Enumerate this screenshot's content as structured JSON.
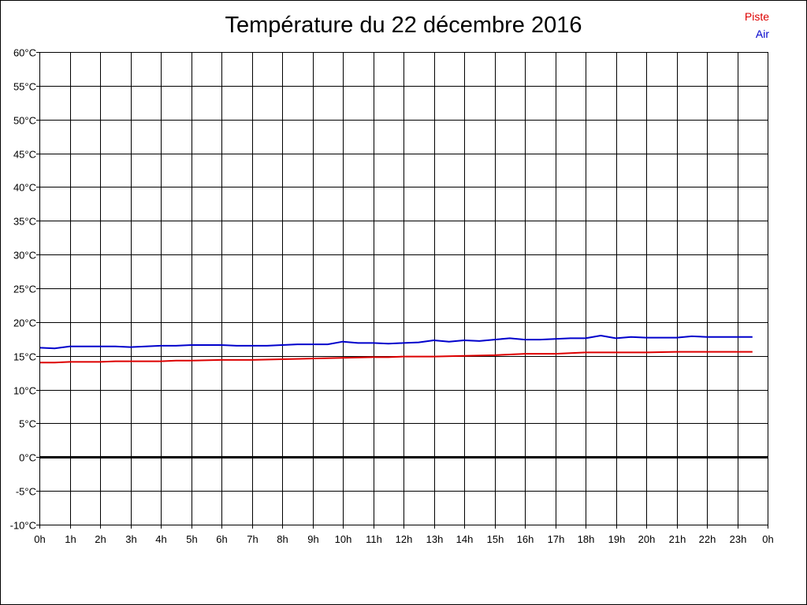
{
  "chart_data": {
    "type": "line",
    "title": "Température du 22 décembre 2016",
    "xlabel": "",
    "ylabel": "",
    "x_tick_labels": [
      "0h",
      "1h",
      "2h",
      "3h",
      "4h",
      "5h",
      "6h",
      "7h",
      "8h",
      "9h",
      "10h",
      "11h",
      "12h",
      "13h",
      "14h",
      "15h",
      "16h",
      "17h",
      "18h",
      "19h",
      "20h",
      "21h",
      "22h",
      "23h",
      "0h"
    ],
    "y_tick_labels": [
      "60°C",
      "55°C",
      "50°C",
      "45°C",
      "40°C",
      "35°C",
      "30°C",
      "25°C",
      "20°C",
      "15°C",
      "10°C",
      "5°C",
      "0°C",
      "-5°C",
      "-10°C"
    ],
    "xlim": [
      0,
      24
    ],
    "ylim": [
      -10,
      60
    ],
    "grid": true,
    "legend_placement": "top-right",
    "series": [
      {
        "name": "Piste",
        "color": "#dd0000",
        "x": [
          0,
          0.5,
          1,
          2,
          2.5,
          3,
          4,
          4.5,
          5,
          6,
          6.5,
          7,
          8,
          9,
          10,
          11,
          11.5,
          12,
          13,
          14,
          15,
          15.5,
          16,
          17,
          17.5,
          18,
          19,
          20,
          21,
          21.5,
          22,
          23,
          23.5
        ],
        "y": [
          14,
          14,
          14.1,
          14.1,
          14.2,
          14.2,
          14.2,
          14.3,
          14.3,
          14.4,
          14.4,
          14.4,
          14.5,
          14.6,
          14.7,
          14.8,
          14.8,
          14.9,
          14.9,
          15,
          15.1,
          15.2,
          15.3,
          15.3,
          15.4,
          15.5,
          15.5,
          15.5,
          15.6,
          15.6,
          15.6,
          15.6,
          15.6
        ]
      },
      {
        "name": "Air",
        "color": "#0000cc",
        "x": [
          0,
          0.5,
          1,
          1.5,
          2,
          2.5,
          3,
          3.5,
          4,
          4.5,
          5,
          5.5,
          6,
          6.5,
          7,
          7.5,
          8,
          8.5,
          9,
          9.5,
          10,
          10.5,
          11,
          11.5,
          12,
          12.5,
          13,
          13.5,
          14,
          14.5,
          15,
          15.5,
          16,
          16.5,
          17,
          17.5,
          18,
          18.5,
          19,
          19.5,
          20,
          20.5,
          21,
          21.5,
          22,
          22.5,
          23,
          23.5
        ],
        "y": [
          16.2,
          16.1,
          16.4,
          16.4,
          16.4,
          16.4,
          16.3,
          16.4,
          16.5,
          16.5,
          16.6,
          16.6,
          16.6,
          16.5,
          16.5,
          16.5,
          16.6,
          16.7,
          16.7,
          16.7,
          17.1,
          16.9,
          16.9,
          16.8,
          16.9,
          17.0,
          17.3,
          17.1,
          17.3,
          17.2,
          17.4,
          17.6,
          17.4,
          17.4,
          17.5,
          17.6,
          17.6,
          18.0,
          17.6,
          17.8,
          17.7,
          17.7,
          17.7,
          17.9,
          17.8,
          17.8,
          17.8,
          17.8
        ]
      }
    ]
  }
}
